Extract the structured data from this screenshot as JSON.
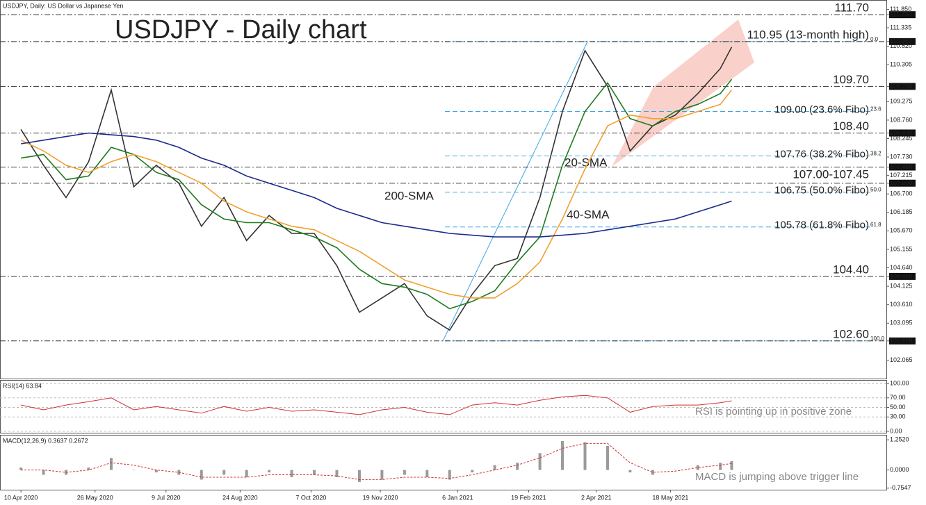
{
  "chart_data": [
    {
      "type": "line",
      "title": "USDJPY - Daily chart",
      "subtitle": "USDJPY, Daily:  US Dollar vs Japanese Yen",
      "x": [
        "2020-04-10",
        "2020-04-24",
        "2020-05-08",
        "2020-05-22",
        "2020-06-05",
        "2020-06-19",
        "2020-07-03",
        "2020-07-17",
        "2020-07-31",
        "2020-08-14",
        "2020-08-28",
        "2020-09-11",
        "2020-09-25",
        "2020-10-09",
        "2020-10-23",
        "2020-11-06",
        "2020-11-20",
        "2020-12-04",
        "2020-12-18",
        "2021-01-01",
        "2021-01-15",
        "2021-01-29",
        "2021-02-12",
        "2021-02-26",
        "2021-03-12",
        "2021-03-26",
        "2021-04-09",
        "2021-04-23",
        "2021-05-07",
        "2021-05-21",
        "2021-06-04",
        "2021-06-18",
        "2021-06-25"
      ],
      "xlim": [
        "2020-03-28",
        "2021-09-29"
      ],
      "xticks": [
        {
          "value": "2020-04-10",
          "label": "10 Apr 2020"
        },
        {
          "value": "2020-05-26",
          "label": "26 May 2020"
        },
        {
          "value": "2020-07-09",
          "label": "9 Jul 2020"
        },
        {
          "value": "2020-08-24",
          "label": "24 Aug 2020"
        },
        {
          "value": "2020-10-07",
          "label": "7 Oct 2020"
        },
        {
          "value": "2020-11-19",
          "label": "19 Nov 2020"
        },
        {
          "value": "2021-01-06",
          "label": "6 Jan 2021"
        },
        {
          "value": "2021-02-19",
          "label": "19 Feb 2021"
        },
        {
          "value": "2021-04-02",
          "label": "2 Apr 2021"
        },
        {
          "value": "2021-05-18",
          "label": "18 May 2021"
        }
      ],
      "ylim": [
        101.55,
        112.11
      ],
      "yticks": [
        {
          "value": 111.85,
          "label": "111.850"
        },
        {
          "value": 111.7,
          "label": "111.700"
        },
        {
          "value": 111.335,
          "label": "111.335"
        },
        {
          "value": 110.95,
          "label": "110.950"
        },
        {
          "value": 110.82,
          "label": "110.820"
        },
        {
          "value": 110.305,
          "label": "110.305"
        },
        {
          "value": 109.7,
          "label": "109.700"
        },
        {
          "value": 109.275,
          "label": "109.275"
        },
        {
          "value": 108.76,
          "label": "108.760"
        },
        {
          "value": 108.4,
          "label": "108.400"
        },
        {
          "value": 108.245,
          "label": "108.245"
        },
        {
          "value": 107.73,
          "label": "107.730"
        },
        {
          "value": 107.45,
          "label": "107.450"
        },
        {
          "value": 107.215,
          "label": "107.215"
        },
        {
          "value": 107,
          "label": "107.000"
        },
        {
          "value": 106.7,
          "label": "106.700"
        },
        {
          "value": 106.185,
          "label": "106.185"
        },
        {
          "value": 105.67,
          "label": "105.670"
        },
        {
          "value": 105.155,
          "label": "105.155"
        },
        {
          "value": 104.64,
          "label": "104.640"
        },
        {
          "value": 104.4,
          "label": "104.400"
        },
        {
          "value": 104.125,
          "label": "104.125"
        },
        {
          "value": 103.61,
          "label": "103.610"
        },
        {
          "value": 103.095,
          "label": "103.095"
        },
        {
          "value": 102.6,
          "label": "102.600"
        },
        {
          "value": 102.065,
          "label": "102.065"
        }
      ],
      "series": [
        {
          "color": "#333333",
          "values": [
            108.5,
            107.5,
            106.6,
            107.6,
            109.6,
            106.9,
            107.5,
            107.0,
            105.8,
            106.6,
            105.4,
            106.1,
            105.6,
            105.6,
            104.7,
            103.4,
            103.8,
            104.2,
            103.3,
            102.9,
            103.9,
            104.7,
            104.9,
            106.6,
            109.0,
            110.7,
            109.7,
            107.9,
            108.6,
            108.9,
            109.5,
            110.2,
            110.8
          ]
        },
        {
          "name": "20-SMA",
          "color": "#1e7b1e",
          "values": [
            107.7,
            107.8,
            107.1,
            107.2,
            108.0,
            107.8,
            107.3,
            107.1,
            106.4,
            106.0,
            105.9,
            105.9,
            105.7,
            105.5,
            105.2,
            104.6,
            104.2,
            104.1,
            103.9,
            103.5,
            103.7,
            104.0,
            104.8,
            105.5,
            107.5,
            109.0,
            109.8,
            108.8,
            108.6,
            109.0,
            109.2,
            109.5,
            109.9
          ]
        },
        {
          "name": "40-SMA",
          "color": "#f0a030",
          "values": [
            108.2,
            107.9,
            107.5,
            107.3,
            107.6,
            107.8,
            107.6,
            107.3,
            107.0,
            106.5,
            106.2,
            106.0,
            105.8,
            105.7,
            105.4,
            105.1,
            104.7,
            104.3,
            104.1,
            103.9,
            103.8,
            103.8,
            104.2,
            104.8,
            106.0,
            107.4,
            108.6,
            108.9,
            108.8,
            108.8,
            109.0,
            109.2,
            109.6
          ]
        },
        {
          "name": "200-SMA",
          "color": "#1c2a8c",
          "values": [
            108.1,
            108.2,
            108.3,
            108.4,
            108.35,
            108.3,
            108.2,
            108.0,
            107.7,
            107.5,
            107.2,
            107.0,
            106.8,
            106.6,
            106.3,
            106.1,
            105.9,
            105.8,
            105.7,
            105.6,
            105.55,
            105.5,
            105.5,
            105.5,
            105.55,
            105.6,
            105.7,
            105.8,
            105.9,
            106.0,
            106.2,
            106.4,
            106.5
          ]
        }
      ],
      "levels": [
        {
          "value": 111.7,
          "label": "111.70",
          "color": "#e8281e"
        },
        {
          "value": 110.95,
          "label": "110.95 (13-month high)",
          "color": "#e8281e"
        },
        {
          "value": 109.7,
          "label": "109.70",
          "color": "#2e7d1a"
        },
        {
          "value": 108.4,
          "label": "108.40",
          "color": "#2e7d1a"
        },
        {
          "values": [
            107.0,
            107.45
          ],
          "label": "107.00-107.45",
          "color": "#2e7d1a"
        },
        {
          "value": 104.4,
          "label": "104.40",
          "color": "#2e7d1a"
        },
        {
          "value": 102.6,
          "label": "102.60",
          "color": "#2e7d1a"
        }
      ],
      "fibo": [
        {
          "value": 110.95,
          "ratio": {
            "value": 0,
            "label": "0.0"
          }
        },
        {
          "value": 109.0,
          "label": "109.00 (23.6% Fibo)",
          "ratio": 23.6
        },
        {
          "value": 107.76,
          "label": "107.76 (38.2% Fibo)",
          "ratio": 38.2
        },
        {
          "value": 106.75,
          "label": "106.75 (50.0% Fibo)",
          "ratio": {
            "value": 50,
            "label": "50.0"
          }
        },
        {
          "value": 105.78,
          "label": "105.78 (61.8% Fibo)",
          "ratio": 61.8
        },
        {
          "value": 102.6,
          "ratio": {
            "value": 100,
            "label": "100.0"
          }
        }
      ],
      "fibo_color": "#3aa8e0"
    },
    {
      "type": "line",
      "title": "RSI(14) 63.84",
      "note": "RSI is pointing up in positive zone",
      "ylim": [
        -3,
        106
      ],
      "yticks": [
        {
          "value": 100,
          "label": "100.00"
        },
        {
          "value": 70,
          "label": "70.00"
        },
        {
          "value": 50,
          "label": "50.00"
        },
        {
          "value": 30,
          "label": "30.00"
        },
        {
          "value": 0,
          "label": "0.00"
        }
      ],
      "grid": true,
      "series": [
        {
          "color": "#d03030",
          "values": [
            55,
            45,
            55,
            62,
            70,
            45,
            52,
            45,
            38,
            52,
            42,
            50,
            42,
            45,
            40,
            35,
            45,
            50,
            40,
            35,
            55,
            60,
            55,
            65,
            72,
            75,
            70,
            40,
            52,
            55,
            55,
            60,
            63.84
          ]
        }
      ]
    },
    {
      "type": "bar",
      "title": "MACD(12,26,9) 0.3637 0.2672",
      "note": "MACD is jumping above trigger line",
      "ylim": [
        -0.82,
        1.43
      ],
      "yticks": [
        {
          "value": 1.252,
          "label": "1.2520"
        },
        {
          "value": 0,
          "label": "0.0000"
        },
        {
          "value": -0.7547,
          "label": "-0.7547"
        }
      ],
      "series": [
        {
          "type": "bar",
          "color": "#9a9a9a",
          "values": [
            0.1,
            -0.2,
            -0.2,
            0.1,
            0.5,
            0.0,
            -0.1,
            -0.2,
            -0.4,
            -0.2,
            -0.3,
            -0.1,
            -0.3,
            -0.2,
            -0.3,
            -0.5,
            -0.4,
            -0.2,
            -0.3,
            -0.4,
            -0.1,
            0.2,
            0.3,
            0.7,
            1.2,
            1.15,
            1.0,
            -0.1,
            -0.2,
            0.0,
            0.2,
            0.3,
            0.3637
          ]
        },
        {
          "type": "line",
          "color": "#d03030",
          "dashed": true,
          "values": [
            0.0,
            0.0,
            -0.1,
            0.0,
            0.3,
            0.2,
            0.0,
            -0.1,
            -0.3,
            -0.3,
            -0.3,
            -0.2,
            -0.2,
            -0.2,
            -0.25,
            -0.4,
            -0.4,
            -0.3,
            -0.3,
            -0.35,
            -0.2,
            0.0,
            0.2,
            0.5,
            0.9,
            1.1,
            1.1,
            0.3,
            -0.1,
            -0.05,
            0.1,
            0.2,
            0.2672
          ]
        }
      ]
    }
  ]
}
